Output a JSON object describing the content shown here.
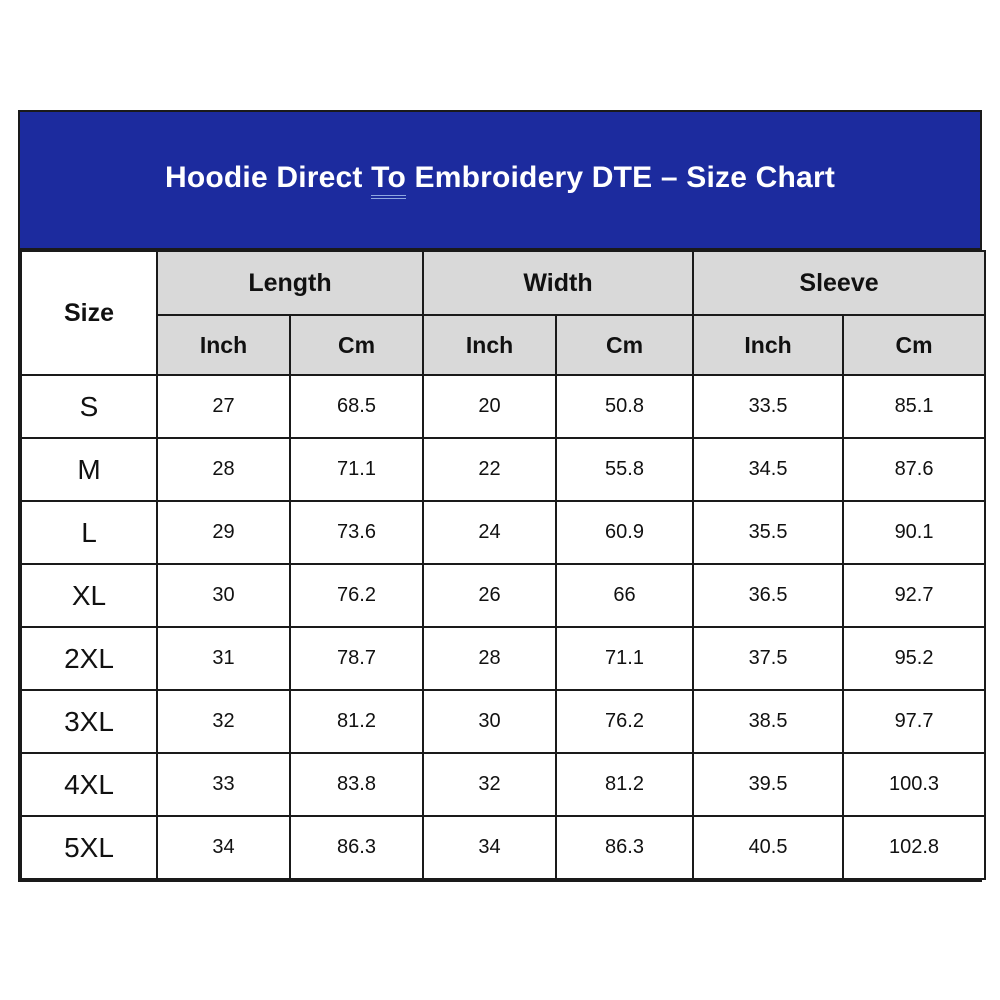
{
  "banner": {
    "title_before": "Hoodie Direct ",
    "title_underlined": "To",
    "title_after": " Embroidery DTE – Size Chart"
  },
  "chart_data": {
    "type": "table",
    "title": "Hoodie Direct To Embroidery DTE – Size Chart",
    "size_column_header": "Size",
    "column_groups": [
      {
        "label": "Length",
        "span": 2
      },
      {
        "label": "Width",
        "span": 2
      },
      {
        "label": "Sleeve",
        "span": 2
      }
    ],
    "unit_subheaders": [
      "Inch",
      "Cm",
      "Inch",
      "Cm",
      "Inch",
      "Cm"
    ],
    "columns": [
      "Size",
      "Length Inch",
      "Length Cm",
      "Width Inch",
      "Width Cm",
      "Sleeve Inch",
      "Sleeve Cm"
    ],
    "rows": [
      {
        "size": "S",
        "values": [
          "27",
          "68.5",
          "20",
          "50.8",
          "33.5",
          "85.1"
        ]
      },
      {
        "size": "M",
        "values": [
          "28",
          "71.1",
          "22",
          "55.8",
          "34.5",
          "87.6"
        ]
      },
      {
        "size": "L",
        "values": [
          "29",
          "73.6",
          "24",
          "60.9",
          "35.5",
          "90.1"
        ]
      },
      {
        "size": "XL",
        "values": [
          "30",
          "76.2",
          "26",
          "66",
          "36.5",
          "92.7"
        ]
      },
      {
        "size": "2XL",
        "values": [
          "31",
          "78.7",
          "28",
          "71.1",
          "37.5",
          "95.2"
        ]
      },
      {
        "size": "3XL",
        "values": [
          "32",
          "81.2",
          "30",
          "76.2",
          "38.5",
          "97.7"
        ]
      },
      {
        "size": "4XL",
        "values": [
          "33",
          "83.8",
          "32",
          "81.2",
          "39.5",
          "100.3"
        ]
      },
      {
        "size": "5XL",
        "values": [
          "34",
          "86.3",
          "34",
          "86.3",
          "40.5",
          "102.8"
        ]
      }
    ]
  },
  "colors": {
    "banner_bg": "#1c2b9e",
    "banner_text": "#ffffff",
    "underline": "#8fa8e0",
    "header_bg": "#d9d9d9",
    "border": "#1a1a1a",
    "cell_bg": "#ffffff",
    "text": "#111111"
  }
}
